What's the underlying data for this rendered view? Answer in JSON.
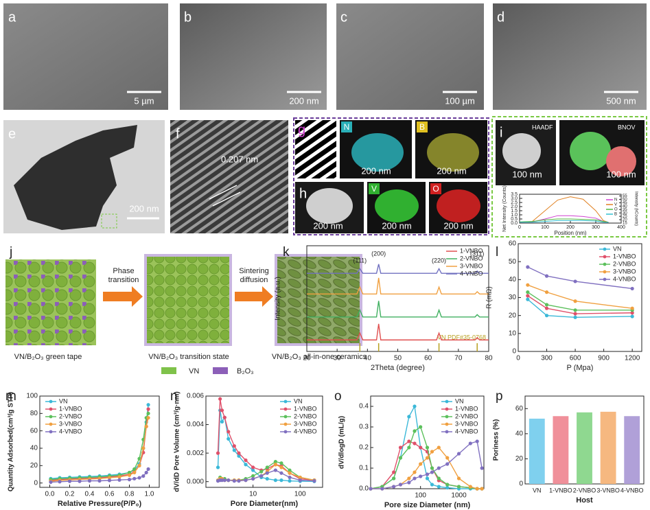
{
  "panels": {
    "a": {
      "label": "a",
      "scale_bar": "5 µm"
    },
    "b": {
      "label": "b",
      "scale_bar": "200 nm"
    },
    "c": {
      "label": "c",
      "scale_bar": "100 µm"
    },
    "d": {
      "label": "d",
      "scale_bar": "500 nm"
    },
    "e": {
      "label": "e",
      "scale_bar": "200 nm"
    },
    "f": {
      "label": "f",
      "annotation": "0.207 nm"
    },
    "g": {
      "label": "g",
      "maps": [
        {
          "element": "N",
          "scale_bar": "200 nm"
        },
        {
          "element": "B",
          "scale_bar": "200 nm"
        }
      ]
    },
    "h": {
      "label": "h",
      "scale_bar": "200 nm",
      "maps": [
        {
          "element": "V",
          "scale_bar": "200 nm"
        },
        {
          "element": "O",
          "scale_bar": "200 nm"
        }
      ]
    },
    "i": {
      "label": "i",
      "images": [
        {
          "caption": "HAADF",
          "scale_bar": "100 nm"
        },
        {
          "caption": "BNOV",
          "scale_bar": "100 nm"
        }
      ]
    },
    "j": {
      "label": "j",
      "steps": [
        "VN/B₂O₃ green tape",
        "VN/B₂O₃ transition state",
        "VN/B₂O₃ all-in-one ceramics"
      ],
      "arrows": [
        "Phase transition",
        "Sintering diffusion"
      ],
      "legend": [
        "VN",
        "B₂O₃"
      ]
    }
  },
  "chart_data": [
    {
      "type": "line",
      "xlabel": "Position (nm)",
      "ylabel": "Net Intensity (Counts)",
      "y2label": "Intensity (kCounts)",
      "legend": "upper right",
      "x": [
        0,
        50,
        100,
        150,
        200,
        250,
        300,
        330,
        350
      ],
      "series": [
        {
          "name": "N",
          "color": "#d040d0",
          "values": [
            0.1,
            0.15,
            0.5,
            0.9,
            0.9,
            0.8,
            0.6,
            0.2,
            0.1
          ]
        },
        {
          "name": "V",
          "color": "#e08020",
          "values": [
            0.1,
            0.2,
            1.5,
            2.8,
            3.2,
            2.9,
            1.5,
            0.3,
            0.1
          ]
        },
        {
          "name": "O",
          "color": "#50b840",
          "values": [
            0.15,
            0.2,
            0.4,
            0.5,
            0.5,
            0.45,
            0.4,
            0.2,
            0.1
          ]
        },
        {
          "name": "B",
          "color": "#30c0d0",
          "values": [
            0.1,
            0.1,
            0.2,
            0.3,
            0.3,
            0.3,
            0.25,
            0.1,
            0.1
          ]
        }
      ],
      "xlim": [
        0,
        400
      ],
      "xticks": [
        0,
        100,
        200,
        300,
        400
      ],
      "ylim": [
        0,
        3.5
      ],
      "yticks": [
        {
          "value": 0,
          "label": "0.0"
        },
        0.5,
        {
          "value": 1,
          "label": "1.0"
        },
        1.5,
        {
          "value": 2,
          "label": "2.0"
        },
        2.5,
        {
          "value": 3,
          "label": "3.0"
        },
        3.5
      ],
      "y2lim": [
        15,
        57.5
      ],
      "y2ticks": [
        15,
        20,
        25,
        30,
        35,
        40,
        45,
        50,
        55
      ]
    },
    {
      "type": "line",
      "label": "k",
      "xlabel": "2Theta (degree)",
      "ylabel": "Intensity (a.u.)",
      "legend": "upper right",
      "x": [
        20,
        36.5,
        37.5,
        38.5,
        43,
        43.7,
        44.4,
        62.8,
        63.6,
        64.4,
        75.5,
        76.2,
        77,
        80
      ],
      "series": [
        {
          "name": "1-VNBO",
          "color": "#e05050",
          "values": [
            0.5,
            0.5,
            0.8,
            0.5,
            0.5,
            1.2,
            0.5,
            0.5,
            0.8,
            0.5,
            0.5,
            0.6,
            0.5,
            0.5
          ]
        },
        {
          "name": "2-VNBO",
          "color": "#40b060",
          "values": [
            1.5,
            1.5,
            1.8,
            1.5,
            1.5,
            2.2,
            1.5,
            1.5,
            1.8,
            1.5,
            1.5,
            1.6,
            1.5,
            1.5
          ]
        },
        {
          "name": "3-VNBO",
          "color": "#f0a040",
          "values": [
            2.5,
            2.5,
            2.8,
            2.5,
            2.5,
            3.2,
            2.5,
            2.5,
            2.8,
            2.5,
            2.5,
            2.6,
            2.5,
            2.5
          ]
        },
        {
          "name": "4-VNBO",
          "color": "#7070c0",
          "values": [
            3.4,
            3.4,
            3.6,
            3.4,
            3.4,
            3.8,
            3.4,
            3.4,
            3.6,
            3.4,
            3.4,
            3.5,
            3.4,
            3.4
          ]
        }
      ],
      "peak_labels": [
        "(111)",
        "(200)",
        "(220)",
        "(311)"
      ],
      "reference_peaks": [
        37.5,
        43.7,
        63.6,
        76.2
      ],
      "reference_label": "VN PDF#35-0768",
      "xlim": [
        20,
        80
      ],
      "xticks": [
        20,
        30,
        40,
        50,
        60,
        70,
        80
      ],
      "ylim": [
        0,
        4.6
      ],
      "yticks": []
    },
    {
      "type": "line",
      "label": "l",
      "xlabel": "P (Mpa)",
      "ylabel": "R (mΩ)",
      "legend": "upper right",
      "markers": true,
      "x": [
        100,
        300,
        600,
        1200
      ],
      "series": [
        {
          "name": "VN",
          "color": "#3bb8d8",
          "values": [
            29,
            20,
            19,
            19.5
          ]
        },
        {
          "name": "1-VNBO",
          "color": "#e0506a",
          "values": [
            31,
            24,
            21,
            21.5
          ]
        },
        {
          "name": "2-VNBO",
          "color": "#5cc05c",
          "values": [
            33,
            26,
            23,
            23
          ]
        },
        {
          "name": "3-VNBO",
          "color": "#f0a040",
          "values": [
            37,
            33,
            28,
            24
          ]
        },
        {
          "name": "4-VNBO",
          "color": "#8070c0",
          "values": [
            47,
            42,
            39,
            35
          ]
        }
      ],
      "xlim": [
        0,
        1300
      ],
      "xticks": [
        0,
        300,
        600,
        900,
        1200
      ],
      "ylim": [
        0,
        60
      ],
      "yticks": [
        0,
        10,
        20,
        30,
        40,
        50,
        60
      ]
    },
    {
      "type": "line",
      "label": "m",
      "xlabel": "Relative Pressure(P/P₀)",
      "ylabel": "Quantity Adsorbed(cm³/g STP)",
      "legend": "upper left",
      "markers": true,
      "x": [
        0.01,
        0.1,
        0.2,
        0.3,
        0.4,
        0.5,
        0.6,
        0.7,
        0.8,
        0.85,
        0.9,
        0.94,
        0.97,
        0.99
      ],
      "series": [
        {
          "name": "VN",
          "color": "#3bb8d8",
          "values": [
            5,
            6,
            6.5,
            7,
            7.5,
            8,
            9,
            10,
            12,
            15,
            22,
            40,
            70,
            90
          ]
        },
        {
          "name": "1-VNBO",
          "color": "#e0506a",
          "values": [
            3,
            4,
            4.5,
            5,
            5.5,
            6,
            7,
            8,
            10,
            13,
            20,
            35,
            65,
            85
          ]
        },
        {
          "name": "2-VNBO",
          "color": "#5cc05c",
          "values": [
            4,
            5,
            5.5,
            6,
            6.5,
            7,
            8,
            9,
            12,
            16,
            28,
            50,
            75,
            80
          ]
        },
        {
          "name": "3-VNBO",
          "color": "#f0a040",
          "values": [
            2,
            3,
            3.5,
            4,
            4.5,
            5,
            6,
            7,
            9,
            12,
            20,
            40,
            65,
            75
          ]
        },
        {
          "name": "4-VNBO",
          "color": "#8070c0",
          "values": [
            1,
            1.5,
            2,
            2,
            2.5,
            2.5,
            3,
            3.5,
            4,
            5,
            6,
            8,
            12,
            16
          ]
        }
      ],
      "xlim": [
        -0.1,
        1.1
      ],
      "xticks": [
        {
          "value": 0,
          "label": "0.0"
        },
        0.2,
        0.4,
        0.6,
        0.8,
        {
          "value": 1,
          "label": "1.0"
        }
      ],
      "ylim": [
        -5,
        100
      ],
      "yticks": [
        0,
        20,
        40,
        60,
        80,
        100
      ]
    },
    {
      "type": "line",
      "label": "n",
      "xlabel": "Pore Diameter(nm)",
      "ylabel": "dV/dD Pore Volume (cm³/g·nm)",
      "legend": "upper right",
      "markers": true,
      "xlog": true,
      "x": [
        1.8,
        2,
        2.2,
        2.5,
        3,
        4,
        5,
        7,
        10,
        15,
        20,
        30,
        40,
        60,
        100,
        200
      ],
      "series": [
        {
          "name": "VN",
          "color": "#3bb8d8",
          "values": [
            0.001,
            0.005,
            0.0042,
            0.0045,
            0.003,
            0.0022,
            0.0018,
            0.0012,
            0.0008,
            0.0003,
            0.0002,
            0.0001,
            0.0001,
            5e-05,
            3e-05,
            2e-05
          ]
        },
        {
          "name": "1-VNBO",
          "color": "#e0506a",
          "values": [
            0.002,
            0.0058,
            0.005,
            0.0045,
            0.0035,
            0.0025,
            0.002,
            0.0015,
            0.001,
            0.0008,
            0.0009,
            0.0012,
            0.0011,
            0.0006,
            0.0002,
            0.0001
          ]
        },
        {
          "name": "2-VNBO",
          "color": "#5cc05c",
          "values": [
            0.0001,
            0.0003,
            0.0002,
            0.0002,
            0.0001,
            0.0001,
            0.0001,
            0.0002,
            0.0004,
            0.0007,
            0.001,
            0.0014,
            0.0013,
            0.0008,
            0.0003,
            0.0001
          ]
        },
        {
          "name": "3-VNBO",
          "color": "#f0a040",
          "values": [
            0.0001,
            0.0002,
            0.0002,
            0.0001,
            0.0001,
            0.0001,
            0.0001,
            0.0001,
            0.0002,
            0.0004,
            0.0007,
            0.0012,
            0.001,
            0.0006,
            0.0003,
            0.0001
          ]
        },
        {
          "name": "4-VNBO",
          "color": "#8070c0",
          "values": [
            5e-05,
            0.0001,
            0.0001,
            0.0001,
            0.0001,
            5e-05,
            5e-05,
            0.0001,
            0.0002,
            0.0004,
            0.0006,
            0.0008,
            0.0006,
            0.0003,
            0.0001,
            5e-05
          ]
        }
      ],
      "xlim": [
        1,
        300
      ],
      "xticks": [
        10,
        100
      ],
      "ylim": [
        -0.0004,
        0.006
      ],
      "yticks": [
        {
          "value": 0,
          "label": "0.000"
        },
        {
          "value": 0.002,
          "label": "0.002"
        },
        {
          "value": 0.004,
          "label": "0.004"
        },
        {
          "value": 0.006,
          "label": "0.006"
        }
      ]
    },
    {
      "type": "line",
      "label": "o",
      "xlabel": "Pore size Diameter (nm)",
      "ylabel": "dV/dlogD (mL/g)",
      "legend": "upper right",
      "markers": true,
      "xlog": true,
      "x": [
        5,
        10,
        20,
        30,
        50,
        70,
        100,
        150,
        200,
        300,
        500,
        1000,
        2000,
        3000,
        4000
      ],
      "series": [
        {
          "name": "VN",
          "color": "#3bb8d8",
          "values": [
            0,
            0.01,
            0.05,
            0.15,
            0.35,
            0.4,
            0.2,
            0.05,
            0.02,
            0.01,
            0.005,
            0,
            0,
            0,
            0
          ]
        },
        {
          "name": "1-VNBO",
          "color": "#e0506a",
          "values": [
            0,
            0.01,
            0.08,
            0.2,
            0.23,
            0.22,
            0.2,
            0.18,
            0.1,
            0.04,
            0.02,
            0.01,
            0.005,
            0,
            0
          ]
        },
        {
          "name": "2-VNBO",
          "color": "#5cc05c",
          "values": [
            0,
            0.01,
            0.05,
            0.15,
            0.2,
            0.28,
            0.3,
            0.2,
            0.1,
            0.05,
            0.02,
            0.01,
            0.005,
            0,
            0
          ]
        },
        {
          "name": "3-VNBO",
          "color": "#f0a040",
          "values": [
            0,
            0,
            0.01,
            0.02,
            0.05,
            0.08,
            0.12,
            0.15,
            0.18,
            0.2,
            0.15,
            0.05,
            0.01,
            0,
            0
          ]
        },
        {
          "name": "4-VNBO",
          "color": "#8070c0",
          "values": [
            0,
            0,
            0.01,
            0.02,
            0.03,
            0.05,
            0.06,
            0.07,
            0.08,
            0.1,
            0.12,
            0.17,
            0.22,
            0.23,
            0.1
          ]
        }
      ],
      "xlim": [
        5,
        4500
      ],
      "xticks": [
        100,
        1000
      ],
      "ylim": [
        0,
        0.45
      ],
      "yticks": [
        {
          "value": 0,
          "label": "0.0"
        },
        0.1,
        0.2,
        0.3,
        0.4
      ]
    },
    {
      "type": "bar",
      "label": "p",
      "xlabel": "Host",
      "ylabel": "Poriness (%)",
      "categories": [
        "VN",
        "1-VNBO",
        "2-VNBO",
        "3-VNBO",
        "4-VNBO"
      ],
      "values": [
        52,
        54,
        57,
        57.5,
        54
      ],
      "colors": [
        "#7fd0ee",
        "#f0909a",
        "#8fd890",
        "#f6b880",
        "#b0a0d8"
      ],
      "ylim": [
        0,
        70
      ],
      "yticks": [
        0,
        20,
        40,
        60
      ]
    }
  ]
}
